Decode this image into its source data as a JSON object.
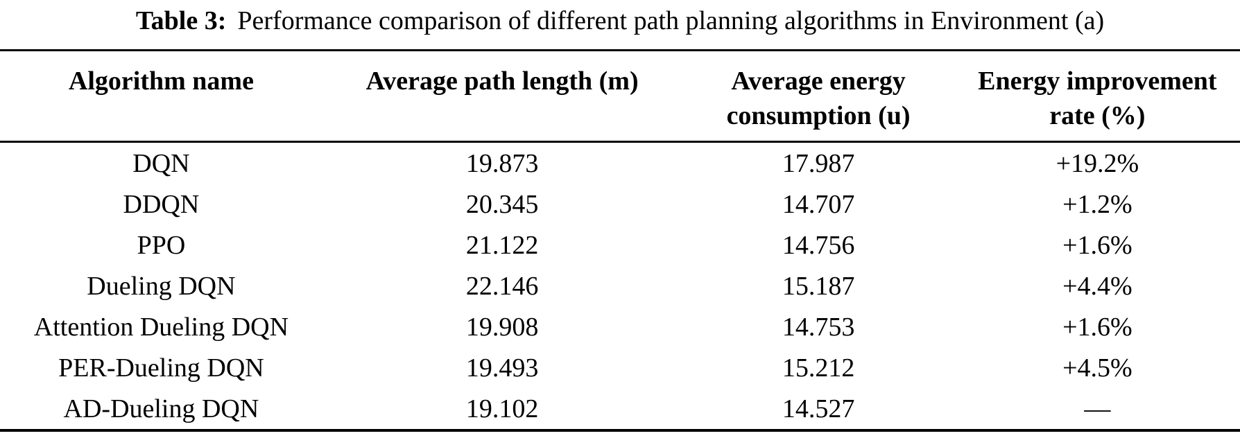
{
  "page": {
    "background_color": "#ffffff",
    "text_color": "#000000"
  },
  "caption": {
    "label": "Table 3:",
    "text": "Performance comparison of different path planning algorithms in Environment (a)"
  },
  "table": {
    "headers": [
      "Algorithm name",
      "Average path length (m)",
      "Average energy consumption (u)",
      "Energy improvement rate (%)"
    ],
    "rows": [
      {
        "algorithm": "DQN",
        "path_length": "19.873",
        "energy": "17.987",
        "improvement": "+19.2%"
      },
      {
        "algorithm": "DDQN",
        "path_length": "20.345",
        "energy": "14.707",
        "improvement": "+1.2%"
      },
      {
        "algorithm": "PPO",
        "path_length": "21.122",
        "energy": "14.756",
        "improvement": "+1.6%"
      },
      {
        "algorithm": "Dueling DQN",
        "path_length": "22.146",
        "energy": "15.187",
        "improvement": "+4.4%"
      },
      {
        "algorithm": "Attention Dueling DQN",
        "path_length": "19.908",
        "energy": "14.753",
        "improvement": "+1.6%"
      },
      {
        "algorithm": "PER-Dueling DQN",
        "path_length": "19.493",
        "energy": "15.212",
        "improvement": "+4.5%"
      },
      {
        "algorithm": "AD-Dueling DQN",
        "path_length": "19.102",
        "energy": "14.527",
        "improvement": "—"
      }
    ]
  }
}
